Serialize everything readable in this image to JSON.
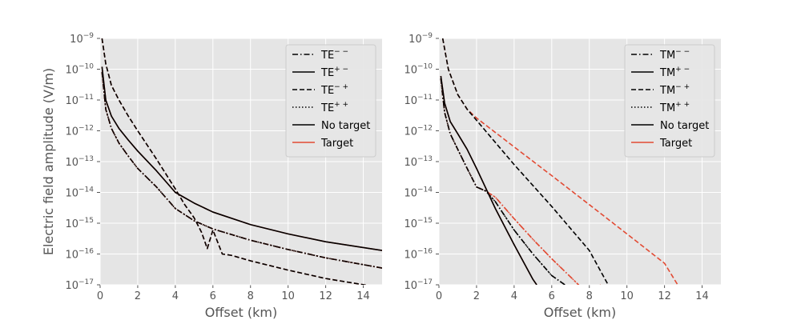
{
  "colors": {
    "background": "#e5e5e5",
    "grid": "#ffffff",
    "no_target": "#000000",
    "target": "#e24a33",
    "ratio_line": "#1a0000"
  },
  "chart_data": [
    {
      "type": "line",
      "xlabel": "Offset (km)",
      "ylabel": "Electric field amplitude (V/m)",
      "xlim": [
        0,
        15
      ],
      "ylim": [
        1e-17,
        1e-09
      ],
      "yscale": "log",
      "grid": true,
      "legend_placement": "top-right",
      "x_ticks": [
        "0",
        "2",
        "4",
        "6",
        "8",
        "10",
        "12",
        "14"
      ],
      "y_ticks": [
        "10",
        "10",
        "10",
        "10",
        "10",
        "10",
        "10",
        "10",
        "10"
      ],
      "y_tick_exponents": [
        "−9",
        "−10",
        "−11",
        "−12",
        "−13",
        "−14",
        "−15",
        "−16",
        "−17"
      ],
      "legend": [
        {
          "base": "TE",
          "sup": "− −",
          "style": "dashdot",
          "color": "#000000"
        },
        {
          "base": "TE",
          "sup": "+ −",
          "style": "solid",
          "color": "#000000"
        },
        {
          "base": "TE",
          "sup": "− +",
          "style": "dashed",
          "color": "#000000"
        },
        {
          "base": "TE",
          "sup": "+ +",
          "style": "dotted",
          "color": "#000000"
        },
        {
          "base": "No target",
          "sup": "",
          "style": "solid",
          "color": "#000000"
        },
        {
          "base": "Target",
          "sup": "",
          "style": "solid",
          "color": "#e24a33"
        }
      ],
      "series": [
        {
          "label": "TE−− target",
          "style": "dashdot",
          "color": "#e24a33",
          "x": [
            0.1,
            0.3,
            0.6,
            1,
            1.5,
            2,
            3,
            4,
            5,
            6,
            8,
            10,
            12,
            15
          ],
          "y": [
            8e-11,
            5e-12,
            1.2e-12,
            4e-13,
            1.5e-13,
            6e-14,
            1.5e-14,
            3e-15,
            1.2e-15,
            6.5e-16,
            2.8e-16,
            1.4e-16,
            7.5e-17,
            3.5e-17
          ]
        },
        {
          "label": "TE−− no target",
          "style": "dashdot",
          "color": "#000000",
          "x": [
            0.1,
            0.3,
            0.6,
            1,
            1.5,
            2,
            3,
            4,
            5,
            6,
            8,
            10,
            12,
            15
          ],
          "y": [
            8e-11,
            5e-12,
            1.2e-12,
            4e-13,
            1.5e-13,
            6e-14,
            1.5e-14,
            3e-15,
            1.2e-15,
            6.5e-16,
            2.8e-16,
            1.4e-16,
            7.5e-17,
            3.5e-17
          ]
        },
        {
          "label": "TE++ target",
          "style": "dotted",
          "color": "#e24a33",
          "x": [
            0.1,
            0.3,
            0.6,
            1,
            1.5,
            2,
            3,
            4,
            5,
            6,
            8,
            10,
            12,
            15
          ],
          "y": [
            8e-11,
            5e-12,
            1.2e-12,
            4e-13,
            1.5e-13,
            6e-14,
            1.5e-14,
            3e-15,
            1.2e-15,
            6.5e-16,
            2.8e-16,
            1.4e-16,
            7.5e-17,
            3.5e-17
          ]
        },
        {
          "label": "TE++ no target",
          "style": "dotted",
          "color": "#000000",
          "x": [
            0.1,
            0.3,
            0.6,
            1,
            1.5,
            2,
            3,
            4,
            5,
            6,
            8,
            10,
            12,
            15
          ],
          "y": [
            8e-11,
            5e-12,
            1.2e-12,
            4e-13,
            1.5e-13,
            6e-14,
            1.5e-14,
            3e-15,
            1.2e-15,
            6.5e-16,
            2.8e-16,
            1.4e-16,
            7.5e-17,
            3.5e-17
          ]
        },
        {
          "label": "TE+− target",
          "style": "solid",
          "color": "#e24a33",
          "x": [
            0.1,
            0.3,
            0.6,
            1,
            1.5,
            2,
            3,
            4,
            5,
            6,
            8,
            10,
            12,
            15
          ],
          "y": [
            1.2e-10,
            1e-11,
            3e-12,
            1.2e-12,
            5e-13,
            2.2e-13,
            5e-14,
            1e-14,
            4.5e-15,
            2.3e-15,
            9e-16,
            4.5e-16,
            2.5e-16,
            1.3e-16
          ]
        },
        {
          "label": "TE+− no target",
          "style": "solid",
          "color": "#000000",
          "x": [
            0.1,
            0.3,
            0.6,
            1,
            1.5,
            2,
            3,
            4,
            5,
            6,
            8,
            10,
            12,
            15
          ],
          "y": [
            1.2e-10,
            1e-11,
            3e-12,
            1.2e-12,
            5e-13,
            2.2e-13,
            5e-14,
            1e-14,
            4.5e-15,
            2.3e-15,
            9e-16,
            4.5e-16,
            2.5e-16,
            1.3e-16
          ]
        },
        {
          "label": "TE−+ target",
          "style": "dashed",
          "color": "#e24a33",
          "x": [
            0.1,
            0.3,
            0.6,
            1,
            1.5,
            2,
            3,
            4,
            4.5,
            5,
            5.4,
            5.7,
            6,
            6.5,
            7,
            8,
            10,
            12,
            15
          ],
          "y": [
            1e-09,
            1.5e-10,
            3e-11,
            1e-11,
            3e-12,
            1e-12,
            1.2e-13,
            1.3e-14,
            4e-15,
            1.5e-15,
            5e-16,
            1.5e-16,
            6e-16,
            1e-16,
            9e-17,
            6e-17,
            3e-17,
            1.6e-17,
            8e-18
          ]
        },
        {
          "label": "TE−+ no target",
          "style": "dashed",
          "color": "#000000",
          "x": [
            0.1,
            0.3,
            0.6,
            1,
            1.5,
            2,
            3,
            4,
            4.5,
            5,
            5.4,
            5.7,
            6,
            6.5,
            7,
            8,
            10,
            12,
            15
          ],
          "y": [
            1e-09,
            1.5e-10,
            3e-11,
            1e-11,
            3e-12,
            1e-12,
            1.2e-13,
            1.3e-14,
            4e-15,
            1.5e-15,
            5e-16,
            1.5e-16,
            6e-16,
            1e-16,
            9e-17,
            6e-17,
            3e-17,
            1.6e-17,
            8e-18
          ]
        }
      ]
    },
    {
      "type": "line",
      "xlabel": "Offset (km)",
      "ylabel": "",
      "xlim": [
        0,
        15
      ],
      "ylim": [
        1e-17,
        1e-09
      ],
      "yscale": "log",
      "grid": true,
      "legend_placement": "top-right",
      "x_ticks": [
        "0",
        "2",
        "4",
        "6",
        "8",
        "10",
        "12",
        "14"
      ],
      "y_ticks": [
        "10",
        "10",
        "10",
        "10",
        "10",
        "10",
        "10",
        "10",
        "10"
      ],
      "y_tick_exponents": [
        "−9",
        "−10",
        "−11",
        "−12",
        "−13",
        "−14",
        "−15",
        "−16",
        "−17"
      ],
      "legend": [
        {
          "base": "TM",
          "sup": "− −",
          "style": "dashdot",
          "color": "#000000"
        },
        {
          "base": "TM",
          "sup": "+ −",
          "style": "solid",
          "color": "#000000"
        },
        {
          "base": "TM",
          "sup": "− +",
          "style": "dashed",
          "color": "#000000"
        },
        {
          "base": "TM",
          "sup": "+ +",
          "style": "dotted",
          "color": "#000000"
        },
        {
          "base": "No target",
          "sup": "",
          "style": "solid",
          "color": "#000000"
        },
        {
          "base": "Target",
          "sup": "",
          "style": "solid",
          "color": "#e24a33"
        }
      ],
      "series": [
        {
          "label": "TM−− target",
          "style": "dashdot",
          "color": "#e24a33",
          "x": [
            0.1,
            0.3,
            0.6,
            1,
            1.5,
            2,
            2.5,
            3,
            4,
            5,
            6,
            7,
            8,
            8.6
          ],
          "y": [
            5e-11,
            4e-12,
            8e-13,
            2.5e-13,
            6e-14,
            1.5e-14,
            1.1e-14,
            7e-15,
            1.4e-15,
            3e-16,
            7e-17,
            1.8e-17,
            4.5e-18,
            1e-17
          ]
        },
        {
          "label": "TM++ target",
          "style": "dotted",
          "color": "#e24a33",
          "x": [
            0.1,
            0.3,
            0.6,
            1,
            1.5,
            2,
            2.5,
            3,
            4,
            5,
            6,
            7,
            8,
            8.6
          ],
          "y": [
            5e-11,
            4e-12,
            8e-13,
            2.5e-13,
            6e-14,
            1.5e-14,
            1.1e-14,
            7e-15,
            1.4e-15,
            3e-16,
            7e-17,
            1.8e-17,
            4.5e-18,
            1e-17
          ]
        },
        {
          "label": "TM−− no target",
          "style": "dashdot",
          "color": "#000000",
          "x": [
            0.1,
            0.3,
            0.6,
            1,
            1.5,
            2,
            2.5,
            3,
            4,
            5,
            6,
            6.7
          ],
          "y": [
            5e-11,
            4e-12,
            8e-13,
            2.5e-13,
            6e-14,
            1.5e-14,
            1.1e-14,
            5e-15,
            6e-16,
            1e-16,
            2e-17,
            1e-17
          ]
        },
        {
          "label": "TM++ no target",
          "style": "dotted",
          "color": "#000000",
          "x": [
            0.1,
            0.3,
            0.6,
            1,
            1.5,
            2,
            2.5,
            3,
            4,
            5,
            6,
            6.7
          ],
          "y": [
            5e-11,
            4e-12,
            8e-13,
            2.5e-13,
            6e-14,
            1.5e-14,
            1.1e-14,
            5e-15,
            6e-16,
            1e-16,
            2e-17,
            1e-17
          ]
        },
        {
          "label": "TM+− target",
          "style": "solid",
          "color": "#e24a33",
          "x": [
            0.1,
            0.3,
            0.6,
            1,
            1.5,
            2,
            3,
            4,
            5,
            5.2
          ],
          "y": [
            6e-11,
            8e-12,
            2e-12,
            8e-13,
            2.5e-13,
            6e-14,
            3e-15,
            2e-16,
            1.5e-17,
            1e-17
          ]
        },
        {
          "label": "TM+− no target",
          "style": "solid",
          "color": "#000000",
          "x": [
            0.1,
            0.3,
            0.6,
            1,
            1.5,
            2,
            3,
            4,
            5,
            5.2
          ],
          "y": [
            6e-11,
            8e-12,
            2e-12,
            8e-13,
            2.5e-13,
            6e-14,
            3e-15,
            2e-16,
            1.5e-17,
            1e-17
          ]
        },
        {
          "label": "TM−+ target",
          "style": "dashed",
          "color": "#e24a33",
          "x": [
            0.2,
            0.5,
            1,
            1.5,
            2,
            4,
            6,
            8,
            10,
            12,
            12.7
          ],
          "y": [
            1e-09,
            1e-10,
            1.5e-11,
            5e-12,
            2.6e-12,
            3e-13,
            3.5e-14,
            4e-15,
            4.5e-16,
            5e-17,
            1e-17
          ]
        },
        {
          "label": "TM−+ no target",
          "style": "dashed",
          "color": "#000000",
          "x": [
            0.2,
            0.5,
            1,
            1.5,
            2,
            4,
            6,
            8,
            9
          ],
          "y": [
            1e-09,
            1e-10,
            1.5e-11,
            5e-12,
            2.2e-12,
            8e-14,
            3.5e-15,
            1.3e-16,
            1e-17
          ]
        }
      ]
    }
  ]
}
